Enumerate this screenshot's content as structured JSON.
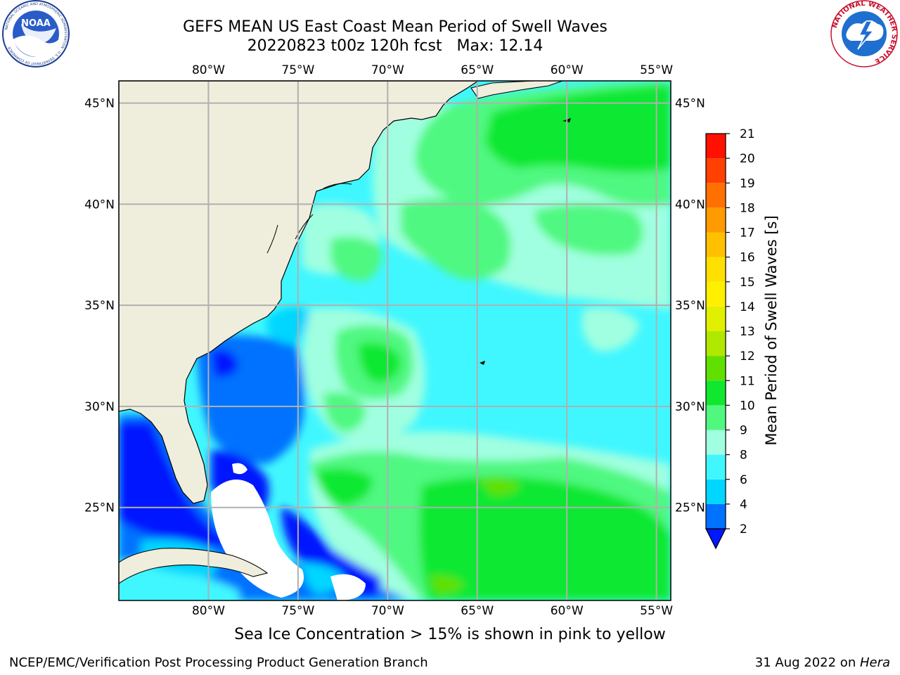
{
  "title": {
    "line1": "GEFS MEAN US East Coast Mean Period of Swell Waves",
    "line2": "20220823 t00z 120h fcst   Max: 12.14"
  },
  "logos": {
    "noaa": {
      "text": "NOAA",
      "ring_text": "NATIONAL OCEANIC AND ATMOSPHERIC ADMINISTRATION · U.S. DEPARTMENT OF COMMERCE"
    },
    "nws": {
      "ring_text": "NATIONAL WEATHER SERVICE"
    }
  },
  "map": {
    "lon_labels": [
      "80°W",
      "75°W",
      "70°W",
      "65°W",
      "60°W",
      "55°W"
    ],
    "lat_labels": [
      "45°N",
      "40°N",
      "35°N",
      "30°N",
      "25°N"
    ],
    "lon_values": [
      -80,
      -75,
      -70,
      -65,
      -60,
      -55
    ],
    "lat_values": [
      45,
      40,
      35,
      30,
      25
    ],
    "lon_range": [
      -85,
      -54.2
    ],
    "lat_range": [
      20.4,
      46.1
    ],
    "colors": {
      "land": "#efeddc",
      "grid": "#b0b0b0",
      "no_data": "#ffffff"
    }
  },
  "colorbar": {
    "title": "Mean Period of Swell Waves [s]",
    "ticks": [
      "2",
      "4",
      "6",
      "8",
      "9",
      "10",
      "11",
      "12",
      "13",
      "14",
      "15",
      "16",
      "17",
      "18",
      "19",
      "20",
      "21"
    ],
    "colors": [
      "#0072ff",
      "#00d6ff",
      "#40f7ff",
      "#a0ffe0",
      "#50f880",
      "#10e830",
      "#60e000",
      "#b0e800",
      "#e0f000",
      "#fff000",
      "#ffe000",
      "#ffc000",
      "#ff9a00",
      "#ff7000",
      "#ff4000",
      "#ff1000"
    ],
    "under_color": "#0018ff"
  },
  "footnote": "Sea Ice Concentration > 15% is shown in pink to yellow",
  "credit_left": "NCEP/EMC/Verification Post Processing Product Generation Branch",
  "credit_right_date": "31 Aug 2022 on ",
  "credit_right_host": "Hera"
}
